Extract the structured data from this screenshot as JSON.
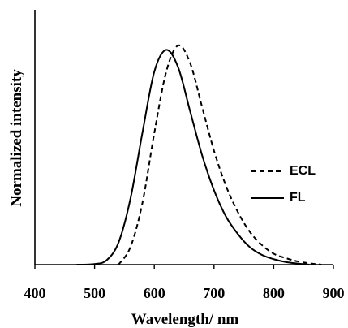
{
  "chart_data": {
    "type": "line",
    "title": "",
    "xlabel": "Wavelength/ nm",
    "ylabel": "Normalized intensity",
    "xlim": [
      400,
      900
    ],
    "ylim": [
      0,
      1.1
    ],
    "x_ticks": [
      400,
      500,
      600,
      700,
      800,
      900
    ],
    "grid": false,
    "legend_position": "right",
    "series": [
      {
        "name": "ECL",
        "style": "dashed",
        "color": "#000000",
        "x": [
          540,
          560,
          580,
          600,
          620,
          640,
          660,
          680,
          700,
          720,
          740,
          760,
          780,
          800,
          820,
          840,
          860,
          880
        ],
        "y": [
          0.0,
          0.08,
          0.28,
          0.6,
          0.88,
          1.0,
          0.92,
          0.72,
          0.52,
          0.36,
          0.24,
          0.15,
          0.09,
          0.05,
          0.03,
          0.015,
          0.006,
          0.0
        ]
      },
      {
        "name": "FL",
        "style": "solid",
        "color": "#000000",
        "x": [
          470,
          500,
          520,
          540,
          560,
          580,
          600,
          620,
          640,
          660,
          680,
          700,
          720,
          740,
          760,
          780,
          800,
          820,
          840,
          860
        ],
        "y": [
          0.0,
          0.003,
          0.02,
          0.1,
          0.3,
          0.6,
          0.88,
          0.98,
          0.9,
          0.7,
          0.5,
          0.34,
          0.22,
          0.14,
          0.08,
          0.045,
          0.025,
          0.012,
          0.005,
          0.0
        ]
      }
    ]
  }
}
